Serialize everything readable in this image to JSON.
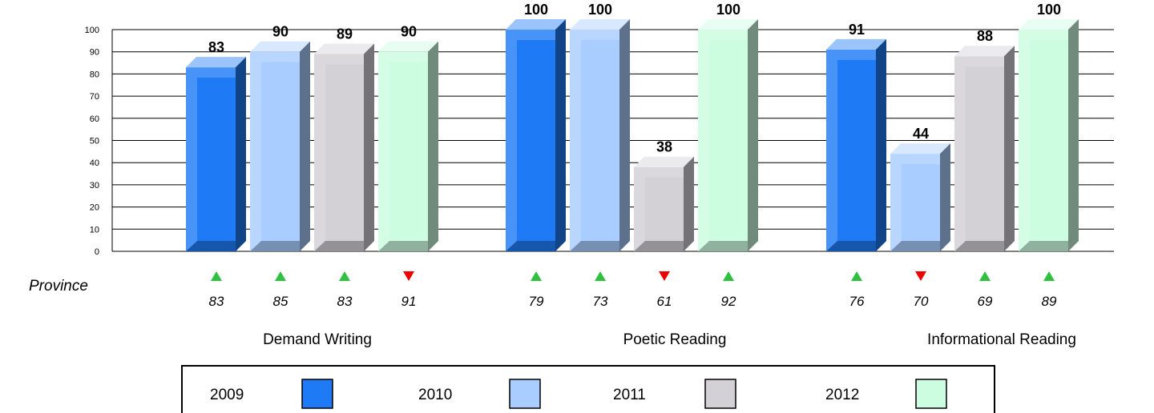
{
  "chart_data": {
    "type": "bar",
    "ylim": [
      0,
      100
    ],
    "yticks": [
      "0",
      "10",
      "20",
      "30",
      "40",
      "50",
      "60",
      "70",
      "80",
      "90",
      "100"
    ],
    "categories": [
      "Demand Writing",
      "Poetic Reading",
      "Informational Reading"
    ],
    "series": [
      {
        "name": "2009",
        "color": "#1f7bf5",
        "values": [
          83,
          100,
          91
        ]
      },
      {
        "name": "2010",
        "color": "#a9cdff",
        "values": [
          90,
          100,
          44
        ]
      },
      {
        "name": "2011",
        "color": "#d3d0d6",
        "values": [
          89,
          38,
          88
        ]
      },
      {
        "name": "2012",
        "color": "#ccfde1",
        "values": [
          90,
          100,
          100
        ]
      }
    ],
    "data_labels": [
      [
        "83",
        "90",
        "89",
        "90"
      ],
      [
        "100",
        "100",
        "38",
        "100"
      ],
      [
        "91",
        "44",
        "88",
        "100"
      ]
    ],
    "grid": true,
    "legend_position": "bottom"
  },
  "province": {
    "label": "Province",
    "values": [
      [
        "83",
        "85",
        "83",
        "91"
      ],
      [
        "79",
        "73",
        "61",
        "92"
      ],
      [
        "76",
        "70",
        "69",
        "89"
      ]
    ],
    "trend": [
      [
        "up",
        "up",
        "up",
        "down"
      ],
      [
        "up",
        "up",
        "down",
        "up"
      ],
      [
        "up",
        "down",
        "up",
        "up"
      ]
    ],
    "up_color": "#2fc140",
    "down_color": "#ee0000"
  }
}
